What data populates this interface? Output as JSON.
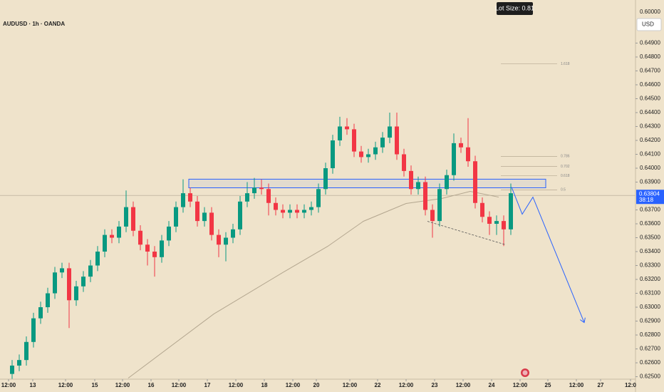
{
  "header": {
    "symbol": "AUDUSD · 1h · OANDA",
    "lot_size": "Lot Size: 0.81",
    "currency": "USD",
    "top_price": "0.60000"
  },
  "chart_data": {
    "type": "candlestick",
    "x": [
      1.5,
      4.5,
      7.5,
      10.5,
      13.5,
      16.5,
      19.5,
      22.5,
      25.5,
      28.5,
      31.5,
      34.5,
      37.5,
      40.5,
      43.5,
      46.5,
      49.5,
      52.5,
      55.5,
      58.5,
      61.5,
      64.5,
      67.5,
      70.5,
      73.5,
      76.5,
      79.5,
      82.5,
      85.5,
      88.5,
      91.5,
      94.5,
      97.5,
      100.5,
      103.5,
      106.5,
      109.5,
      112.5,
      115.5,
      118.5,
      121.5,
      124.5,
      127.5,
      130.5,
      133.5,
      136.5,
      139.5,
      142.5,
      145.5,
      148.5,
      151.5,
      154.5,
      157.5,
      160.5,
      163.5,
      166.5,
      169.5,
      172.5,
      175.5,
      178.5,
      181.5,
      184.5,
      187.5,
      190.5,
      193.5,
      196.5,
      199.5,
      202.5,
      205.5,
      208.5,
      211.5
    ],
    "open": [
      0.6252,
      0.6258,
      0.6262,
      0.6275,
      0.6292,
      0.63,
      0.631,
      0.6325,
      0.6328,
      0.6305,
      0.6315,
      0.6322,
      0.633,
      0.634,
      0.6352,
      0.635,
      0.6358,
      0.6372,
      0.6355,
      0.6345,
      0.634,
      0.6336,
      0.6348,
      0.6358,
      0.6372,
      0.6382,
      0.6376,
      0.6362,
      0.6368,
      0.6352,
      0.6345,
      0.635,
      0.6356,
      0.6376,
      0.6382,
      0.6386,
      0.6385,
      0.6375,
      0.637,
      0.6368,
      0.637,
      0.6368,
      0.637,
      0.6372,
      0.6385,
      0.64,
      0.642,
      0.643,
      0.6428,
      0.6412,
      0.6408,
      0.641,
      0.6415,
      0.6422,
      0.643,
      0.641,
      0.6398,
      0.6385,
      0.639,
      0.637,
      0.6362,
      0.6385,
      0.6395,
      0.6418,
      0.6415,
      0.6405,
      0.6375,
      0.6365,
      0.636,
      0.6362,
      0.6356
    ],
    "high": [
      0.6262,
      0.6266,
      0.6279,
      0.6296,
      0.6304,
      0.6314,
      0.6329,
      0.6332,
      0.6332,
      0.6319,
      0.6326,
      0.6334,
      0.6344,
      0.6356,
      0.6356,
      0.6362,
      0.6384,
      0.6376,
      0.6359,
      0.6349,
      0.6344,
      0.6352,
      0.6362,
      0.6376,
      0.6392,
      0.6386,
      0.638,
      0.6372,
      0.6372,
      0.6356,
      0.6354,
      0.636,
      0.638,
      0.639,
      0.6393,
      0.6392,
      0.6389,
      0.6379,
      0.6374,
      0.6374,
      0.6374,
      0.6374,
      0.6376,
      0.6389,
      0.6404,
      0.6424,
      0.6437,
      0.6436,
      0.6432,
      0.6416,
      0.6414,
      0.6419,
      0.6426,
      0.644,
      0.644,
      0.6414,
      0.6402,
      0.6394,
      0.6394,
      0.6374,
      0.6389,
      0.6399,
      0.6425,
      0.6422,
      0.6436,
      0.6409,
      0.6379,
      0.6369,
      0.6366,
      0.6366,
      0.6389
    ],
    "low": [
      0.6248,
      0.6254,
      0.6258,
      0.6271,
      0.6288,
      0.6296,
      0.6306,
      0.6321,
      0.6285,
      0.6301,
      0.6311,
      0.6318,
      0.6326,
      0.6336,
      0.6346,
      0.6346,
      0.6354,
      0.6351,
      0.6341,
      0.633,
      0.6322,
      0.6332,
      0.6344,
      0.6354,
      0.6368,
      0.6372,
      0.6358,
      0.6358,
      0.6348,
      0.6336,
      0.6333,
      0.6346,
      0.6352,
      0.6372,
      0.6378,
      0.6381,
      0.6366,
      0.6366,
      0.6364,
      0.6364,
      0.6364,
      0.6364,
      0.6366,
      0.6368,
      0.6381,
      0.6396,
      0.6416,
      0.6424,
      0.6408,
      0.6404,
      0.6404,
      0.6406,
      0.6411,
      0.6418,
      0.6406,
      0.6394,
      0.6381,
      0.6381,
      0.6366,
      0.635,
      0.6358,
      0.6381,
      0.6391,
      0.6411,
      0.6401,
      0.6371,
      0.6361,
      0.6352,
      0.6352,
      0.6344,
      0.6352
    ],
    "close": [
      0.6258,
      0.6262,
      0.6275,
      0.6292,
      0.63,
      0.631,
      0.6325,
      0.6328,
      0.6305,
      0.6315,
      0.6322,
      0.633,
      0.634,
      0.6352,
      0.635,
      0.6358,
      0.6372,
      0.6355,
      0.6345,
      0.634,
      0.6336,
      0.6348,
      0.6358,
      0.6372,
      0.6382,
      0.6376,
      0.6362,
      0.6368,
      0.6352,
      0.6345,
      0.635,
      0.6356,
      0.6376,
      0.6382,
      0.6386,
      0.6385,
      0.6375,
      0.637,
      0.6368,
      0.637,
      0.6368,
      0.637,
      0.6372,
      0.6385,
      0.64,
      0.642,
      0.643,
      0.6428,
      0.6412,
      0.6408,
      0.641,
      0.6415,
      0.6422,
      0.643,
      0.641,
      0.6398,
      0.6385,
      0.639,
      0.637,
      0.6362,
      0.6385,
      0.6395,
      0.6418,
      0.6415,
      0.6405,
      0.6375,
      0.6365,
      0.636,
      0.6362,
      0.6356,
      0.6382
    ],
    "up_color": "#089981",
    "down_color": "#f23645",
    "xlim": [
      -3.6,
      264
    ],
    "xticks": [
      {
        "value": 0,
        "label": "12:00"
      },
      {
        "value": 10.2,
        "label": "13"
      },
      {
        "value": 24,
        "label": "12:00"
      },
      {
        "value": 36.3,
        "label": "15"
      },
      {
        "value": 48,
        "label": "12:00"
      },
      {
        "value": 60,
        "label": "16"
      },
      {
        "value": 71.7,
        "label": "12:00"
      },
      {
        "value": 83.7,
        "label": "17"
      },
      {
        "value": 95.7,
        "label": "12:00"
      },
      {
        "value": 107.7,
        "label": "18"
      },
      {
        "value": 119.7,
        "label": "12:00"
      },
      {
        "value": 129.6,
        "label": "20"
      },
      {
        "value": 143.7,
        "label": "12:00"
      },
      {
        "value": 155.4,
        "label": "22"
      },
      {
        "value": 167.4,
        "label": "12:00"
      },
      {
        "value": 179.4,
        "label": "23"
      },
      {
        "value": 191.4,
        "label": "12:00"
      },
      {
        "value": 203.4,
        "label": "24"
      },
      {
        "value": 215.4,
        "label": "12:00"
      },
      {
        "value": 227.1,
        "label": "25"
      },
      {
        "value": 239.1,
        "label": "12:00"
      },
      {
        "value": 249.3,
        "label": "27"
      },
      {
        "value": 261.9,
        "label": "12:0"
      }
    ],
    "ylim": [
      0.6239,
      0.6521
    ],
    "yticks": [
      {
        "value": 0.625,
        "label": "0.62500"
      },
      {
        "value": 0.626,
        "label": "0.62600"
      },
      {
        "value": 0.627,
        "label": "0.62700"
      },
      {
        "value": 0.628,
        "label": "0.62800"
      },
      {
        "value": 0.629,
        "label": "0.62900"
      },
      {
        "value": 0.63,
        "label": "0.63000"
      },
      {
        "value": 0.631,
        "label": "0.63100"
      },
      {
        "value": 0.632,
        "label": "0.63200"
      },
      {
        "value": 0.633,
        "label": "0.63300"
      },
      {
        "value": 0.634,
        "label": "0.63400"
      },
      {
        "value": 0.635,
        "label": "0.63500"
      },
      {
        "value": 0.636,
        "label": "0.63600"
      },
      {
        "value": 0.637,
        "label": "0.63700"
      },
      {
        "value": 0.639,
        "label": "0.63900"
      },
      {
        "value": 0.64,
        "label": "0.64000"
      },
      {
        "value": 0.641,
        "label": "0.64100"
      },
      {
        "value": 0.642,
        "label": "0.64200"
      },
      {
        "value": 0.643,
        "label": "0.64300"
      },
      {
        "value": 0.644,
        "label": "0.64400"
      },
      {
        "value": 0.645,
        "label": "0.64500"
      },
      {
        "value": 0.646,
        "label": "0.64600"
      },
      {
        "value": 0.647,
        "label": "0.64700"
      },
      {
        "value": 0.648,
        "label": "0.64800"
      },
      {
        "value": 0.649,
        "label": "0.64900"
      }
    ],
    "moving_average": {
      "color": "#b3a68f",
      "x": [
        50.4,
        86.4,
        116.4,
        134.4,
        149.4,
        167.4,
        182.4,
        194.4,
        206.4
      ],
      "values": [
        0.6249,
        0.62951,
        0.63259,
        0.63438,
        0.63618,
        0.63746,
        0.63782,
        0.63833,
        0.63792
      ]
    },
    "zone": {
      "color": "#2962ff",
      "x": [
        75.9,
        226.2
      ],
      "values": [
        0.63859,
        0.63921
      ]
    },
    "fib_x": [
      207.3,
      231.0
    ],
    "fib_levels": [
      {
        "label": "1.618",
        "value": 0.64751
      },
      {
        "label": "0.786",
        "value": 0.64085
      },
      {
        "label": "0.702",
        "value": 0.64013
      },
      {
        "label": "0.618",
        "value": 0.63946
      },
      {
        "label": "0.5",
        "value": 0.63844
      }
    ],
    "trendline": {
      "color": "#555555",
      "x": [
        176.4,
        209.4
      ],
      "values": [
        0.63618,
        0.63449
      ]
    },
    "projection": {
      "color": "#2962ff",
      "x": [
        211.8,
        216.3,
        220.8,
        242.4
      ],
      "values": [
        0.63864,
        0.63669,
        0.63792,
        0.6289
      ]
    },
    "current_price": {
      "value": 0.63804,
      "label": "0.63804",
      "countdown": "38:18",
      "color": "#2962ff"
    }
  }
}
